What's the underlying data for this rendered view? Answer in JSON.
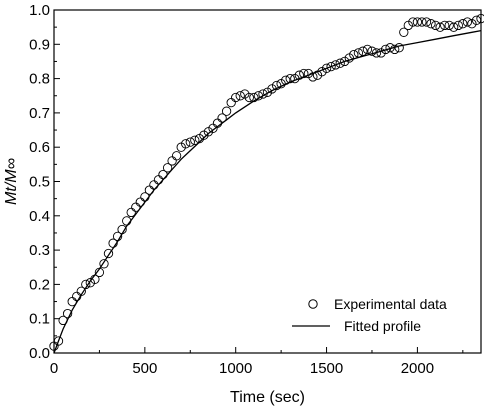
{
  "chart_data": {
    "type": "scatter",
    "xlabel": "Time (sec)",
    "ylabel": "Mt/M∞",
    "xlim": [
      0,
      2350
    ],
    "ylim": [
      0,
      1.0
    ],
    "xticks": [
      0,
      500,
      1000,
      1500,
      2000
    ],
    "xtick_labels": [
      "0",
      "500",
      "1000",
      "1500",
      "2000"
    ],
    "yticks": [
      0,
      0.1,
      0.2,
      0.3,
      0.4,
      0.5,
      0.6,
      0.7,
      0.8,
      0.9,
      1.0
    ],
    "ytick_labels": [
      "0.0",
      "0.1",
      "0.2",
      "0.3",
      "0.4",
      "0.5",
      "0.6",
      "0.7",
      "0.8",
      "0.9",
      "1.0"
    ],
    "legend": {
      "position": "bottom-right",
      "entries": [
        {
          "label": "Experimental data",
          "marker": "open-circle"
        },
        {
          "label": "Fitted profile",
          "marker": "line"
        }
      ]
    },
    "series": [
      {
        "name": "Experimental data",
        "style": "open-circle",
        "x": [
          0,
          25,
          50,
          75,
          100,
          125,
          150,
          175,
          200,
          225,
          250,
          275,
          300,
          325,
          350,
          375,
          400,
          425,
          450,
          475,
          500,
          525,
          550,
          575,
          600,
          625,
          650,
          675,
          700,
          725,
          750,
          775,
          800,
          825,
          850,
          875,
          900,
          925,
          950,
          975,
          1000,
          1025,
          1050,
          1075,
          1100,
          1125,
          1150,
          1175,
          1200,
          1225,
          1250,
          1275,
          1300,
          1325,
          1350,
          1375,
          1400,
          1425,
          1450,
          1475,
          1500,
          1525,
          1550,
          1575,
          1600,
          1625,
          1650,
          1675,
          1700,
          1725,
          1750,
          1775,
          1800,
          1825,
          1850,
          1875,
          1900,
          1925,
          1950,
          1975,
          2000,
          2025,
          2050,
          2075,
          2100,
          2125,
          2150,
          2175,
          2200,
          2225,
          2250,
          2275,
          2300,
          2325,
          2350
        ],
        "y": [
          0.02,
          0.035,
          0.095,
          0.115,
          0.15,
          0.165,
          0.18,
          0.2,
          0.205,
          0.215,
          0.235,
          0.26,
          0.29,
          0.32,
          0.34,
          0.36,
          0.385,
          0.41,
          0.425,
          0.44,
          0.455,
          0.475,
          0.49,
          0.505,
          0.52,
          0.54,
          0.56,
          0.575,
          0.6,
          0.61,
          0.615,
          0.62,
          0.625,
          0.635,
          0.645,
          0.655,
          0.67,
          0.685,
          0.705,
          0.73,
          0.745,
          0.75,
          0.755,
          0.745,
          0.745,
          0.75,
          0.755,
          0.76,
          0.77,
          0.78,
          0.785,
          0.795,
          0.8,
          0.8,
          0.81,
          0.815,
          0.815,
          0.805,
          0.81,
          0.82,
          0.83,
          0.835,
          0.84,
          0.845,
          0.85,
          0.86,
          0.87,
          0.875,
          0.88,
          0.885,
          0.88,
          0.875,
          0.875,
          0.885,
          0.89,
          0.885,
          0.89,
          0.935,
          0.955,
          0.965,
          0.965,
          0.965,
          0.965,
          0.96,
          0.955,
          0.95,
          0.955,
          0.955,
          0.95,
          0.955,
          0.96,
          0.965,
          0.96,
          0.97,
          0.975
        ]
      },
      {
        "name": "Fitted profile",
        "style": "line",
        "x": [
          0,
          25,
          50,
          100,
          150,
          200,
          250,
          300,
          350,
          400,
          450,
          500,
          550,
          600,
          650,
          700,
          750,
          800,
          850,
          900,
          950,
          1000,
          1100,
          1200,
          1300,
          1400,
          1500,
          1600,
          1700,
          1800,
          1900,
          2000,
          2100,
          2200,
          2300,
          2350
        ],
        "y": [
          0.0,
          0.035,
          0.07,
          0.125,
          0.17,
          0.21,
          0.245,
          0.285,
          0.325,
          0.37,
          0.405,
          0.44,
          0.475,
          0.505,
          0.535,
          0.565,
          0.59,
          0.615,
          0.64,
          0.66,
          0.68,
          0.7,
          0.735,
          0.765,
          0.79,
          0.81,
          0.83,
          0.85,
          0.865,
          0.88,
          0.895,
          0.905,
          0.915,
          0.925,
          0.935,
          0.94
        ]
      }
    ]
  }
}
